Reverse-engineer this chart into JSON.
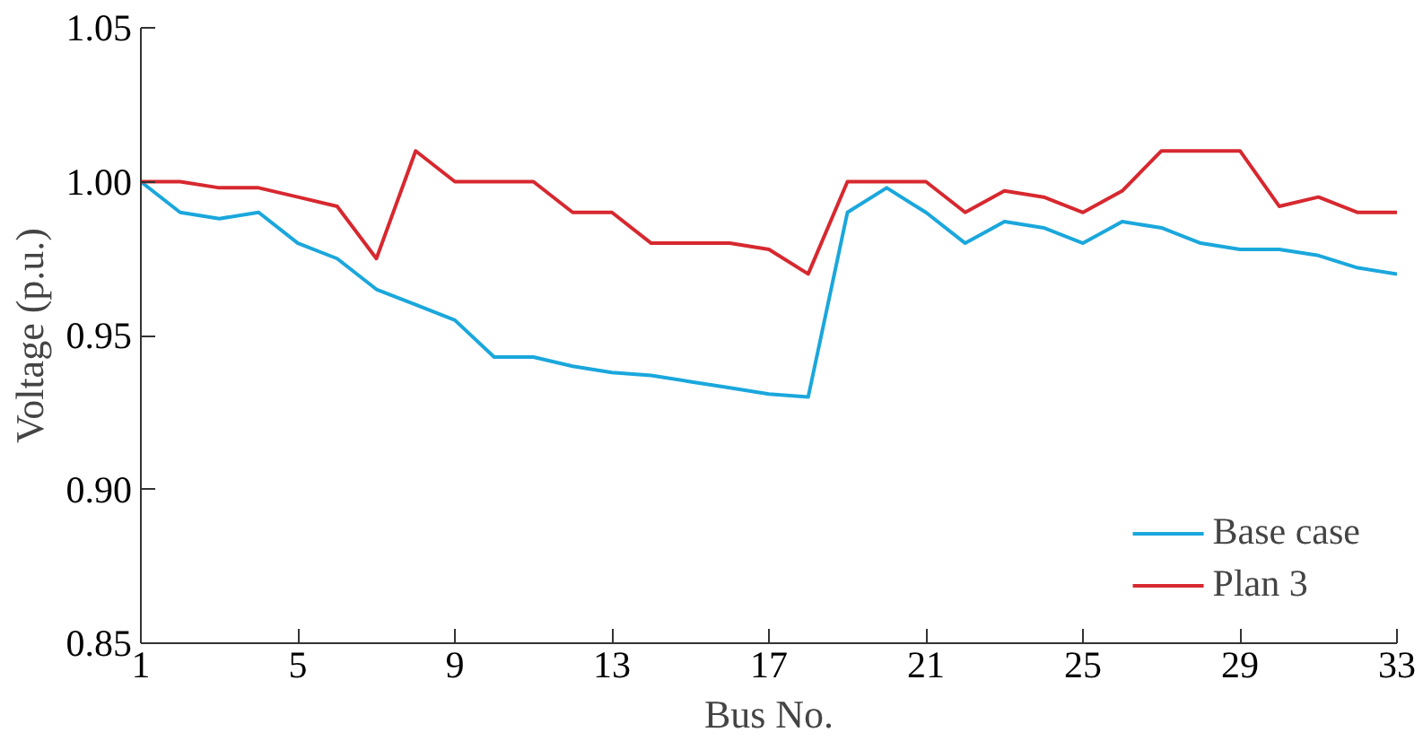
{
  "chart_data": {
    "type": "line",
    "xlabel": "Bus No.",
    "ylabel": "Voltage (p.u.)",
    "x": [
      1,
      2,
      3,
      4,
      5,
      6,
      7,
      8,
      9,
      10,
      11,
      12,
      13,
      14,
      15,
      16,
      17,
      18,
      19,
      20,
      21,
      22,
      23,
      24,
      25,
      26,
      27,
      28,
      29,
      30,
      31,
      32,
      33
    ],
    "series": [
      {
        "name": "Base case",
        "color": "#1aa7dc",
        "values": [
          1.0,
          0.99,
          0.988,
          0.99,
          0.98,
          0.975,
          0.965,
          0.96,
          0.955,
          0.943,
          0.943,
          0.94,
          0.938,
          0.937,
          0.935,
          0.933,
          0.931,
          0.93,
          0.99,
          0.998,
          0.99,
          0.98,
          0.987,
          0.985,
          0.98,
          0.987,
          0.985,
          0.98,
          0.978,
          0.978,
          0.976,
          0.972,
          0.97
        ]
      },
      {
        "name": "Plan 3",
        "color": "#d7282f",
        "values": [
          1.0,
          1.0,
          0.998,
          0.998,
          0.995,
          0.992,
          0.975,
          1.01,
          1.0,
          1.0,
          1.0,
          0.99,
          0.99,
          0.98,
          0.98,
          0.98,
          0.978,
          0.97,
          1.0,
          1.0,
          1.0,
          0.99,
          0.997,
          0.995,
          0.99,
          0.997,
          1.01,
          1.01,
          1.01,
          0.992,
          0.995,
          0.99,
          0.99
        ]
      }
    ],
    "xlim": [
      1,
      33
    ],
    "xticks": [
      1,
      5,
      9,
      13,
      17,
      21,
      25,
      29,
      33
    ],
    "ylim": [
      0.85,
      1.05
    ],
    "yticks": [
      {
        "value": 0.85,
        "label": "0.85"
      },
      {
        "value": 0.9,
        "label": "0.90"
      },
      {
        "value": 0.95,
        "label": "0.95"
      },
      {
        "value": 1.0,
        "label": "1.00"
      },
      {
        "value": 1.05,
        "label": "1.05"
      }
    ],
    "grid": false,
    "legend": "bottom right",
    "line_style": "solid",
    "marker": "none"
  }
}
